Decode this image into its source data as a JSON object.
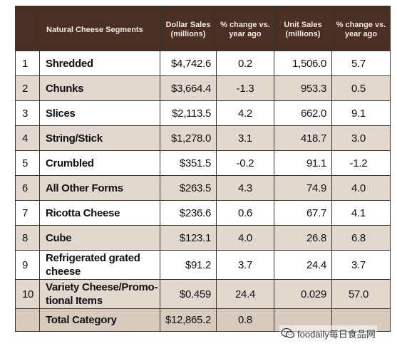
{
  "table": {
    "headers": {
      "num": "",
      "segment": "Natural Cheese Segments",
      "dollar": "Dollar Sales (millions)",
      "dollar_change": "% change vs. year ago",
      "unit": "Unit Sales (millions)",
      "unit_change": "% change vs. year ago"
    },
    "rows": [
      {
        "num": "1",
        "segment": "Shredded",
        "dollar": "$4,742.6",
        "dollar_change": "0.2",
        "unit": "1,506.0",
        "unit_change": "5.7"
      },
      {
        "num": "2",
        "segment": "Chunks",
        "dollar": "$3,664.4",
        "dollar_change": "-1.3",
        "unit": "953.3",
        "unit_change": "0.5"
      },
      {
        "num": "3",
        "segment": "Slices",
        "dollar": "$2,113.5",
        "dollar_change": "4.2",
        "unit": "662.0",
        "unit_change": "9.1"
      },
      {
        "num": "4",
        "segment": "String/Stick",
        "dollar": "$1,278.0",
        "dollar_change": "3.1",
        "unit": "418.7",
        "unit_change": "3.0"
      },
      {
        "num": "5",
        "segment": "Crumbled",
        "dollar": "$351.5",
        "dollar_change": "-0.2",
        "unit": "91.1",
        "unit_change": "-1.2"
      },
      {
        "num": "6",
        "segment": "All Other Forms",
        "dollar": "$263.5",
        "dollar_change": "4.3",
        "unit": "74.9",
        "unit_change": "4.0"
      },
      {
        "num": "7",
        "segment": "Ricotta Cheese",
        "dollar": "$236.6",
        "dollar_change": "0.6",
        "unit": "67.7",
        "unit_change": "4.1"
      },
      {
        "num": "8",
        "segment": "Cube",
        "dollar": "$123.1",
        "dollar_change": "4.0",
        "unit": "26.8",
        "unit_change": "6.8"
      },
      {
        "num": "9",
        "segment": "Refrigerated grated cheese",
        "dollar": "$91.2",
        "dollar_change": "3.7",
        "unit": "24.4",
        "unit_change": "3.7"
      },
      {
        "num": "10",
        "segment": "Variety Cheese/Promo-tional Items",
        "dollar": "$0.459",
        "dollar_change": "24.4",
        "unit": "0.029",
        "unit_change": "57.0"
      }
    ],
    "total": {
      "num": "",
      "segment": "Total Category",
      "dollar": "$12,865.2",
      "dollar_change": "0.8",
      "unit": "",
      "unit_change": ""
    }
  },
  "watermark": {
    "text": "foodaily每日食品网",
    "icon": "wechat-logo-icon"
  },
  "colors": {
    "header_bg": "#4a2f24",
    "header_text": "#f1ebe4",
    "band_light": "#ffffff",
    "band_tan": "#e3d8ce",
    "total_bg": "#d8cabc",
    "border": "#3a3330"
  }
}
